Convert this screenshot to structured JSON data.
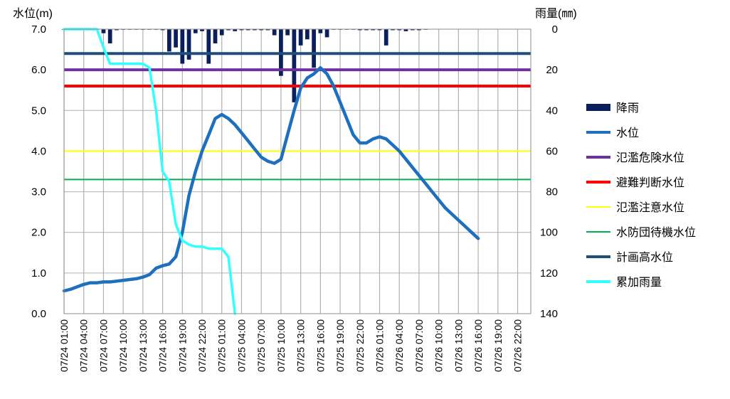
{
  "chart_data": {
    "type": "combo",
    "left_axis_label": "水位(m)",
    "right_axis_label": "雨量(㎜)",
    "y_left": {
      "min": 0,
      "max": 7,
      "ticks": [
        "0.0",
        "1.0",
        "2.0",
        "3.0",
        "4.0",
        "5.0",
        "6.0",
        "7.0"
      ]
    },
    "y_right": {
      "min": 0,
      "max": 140,
      "inverted": true,
      "ticks": [
        "0",
        "20",
        "40",
        "60",
        "80",
        "100",
        "120",
        "140"
      ]
    },
    "x_hours": {
      "start": 0,
      "end": 71,
      "grid_step": 3
    },
    "x_tick_labels": [
      "07/24 01:00",
      "07/24 04:00",
      "07/24 07:00",
      "07/24 10:00",
      "07/24 13:00",
      "07/24 16:00",
      "07/24 19:00",
      "07/24 22:00",
      "07/25 01:00",
      "07/25 04:00",
      "07/25 07:00",
      "07/25 10:00",
      "07/25 13:00",
      "07/25 16:00",
      "07/25 19:00",
      "07/25 22:00",
      "07/26 01:00",
      "07/26 04:00",
      "07/26 07:00",
      "07/26 10:00",
      "07/26 13:00",
      "07/26 16:00",
      "07/26 19:00",
      "07/26 22:00"
    ],
    "grid": true,
    "legend_position": "right",
    "colors": {
      "rain": "#0a1f5c",
      "water_level": "#1f6fbf",
      "flood_danger": "#7030a0",
      "evacuation": "#ff0000",
      "flood_caution": "#ffff00",
      "standby": "#00b050",
      "plan_high": "#1f4e79",
      "cumulative": "#33ffff",
      "grid": "#b0b0b0"
    },
    "thresholds": [
      {
        "key": "plan_high",
        "name": "計画高水位",
        "value": 6.4
      },
      {
        "key": "flood_danger",
        "name": "氾濫危険水位",
        "value": 6.0
      },
      {
        "key": "evacuation",
        "name": "避難判断水位",
        "value": 5.6
      },
      {
        "key": "flood_caution",
        "name": "氾濫注意水位",
        "value": 4.0
      },
      {
        "key": "standby",
        "name": "水防団待機水位",
        "value": 3.3
      }
    ],
    "rain": [
      [
        0,
        0.2
      ],
      [
        1,
        0.2
      ],
      [
        2,
        0.2
      ],
      [
        3,
        0.2
      ],
      [
        4,
        0.2
      ],
      [
        5,
        0.2
      ],
      [
        6,
        2
      ],
      [
        7,
        7
      ],
      [
        8,
        0.5
      ],
      [
        9,
        0.2
      ],
      [
        10,
        0.2
      ],
      [
        11,
        0.2
      ],
      [
        12,
        0.2
      ],
      [
        13,
        0.2
      ],
      [
        14,
        0.2
      ],
      [
        15,
        0.5
      ],
      [
        16,
        11
      ],
      [
        17,
        9
      ],
      [
        18,
        17
      ],
      [
        19,
        15
      ],
      [
        20,
        2
      ],
      [
        21,
        1
      ],
      [
        22,
        17
      ],
      [
        23,
        7
      ],
      [
        24,
        3
      ],
      [
        25,
        0.5
      ],
      [
        26,
        1
      ],
      [
        27,
        0.5
      ],
      [
        28,
        0.5
      ],
      [
        29,
        0.5
      ],
      [
        30,
        0.5
      ],
      [
        31,
        0.5
      ],
      [
        32,
        3
      ],
      [
        33,
        23
      ],
      [
        34,
        3
      ],
      [
        35,
        36
      ],
      [
        36,
        8
      ],
      [
        37,
        5
      ],
      [
        38,
        19
      ],
      [
        39,
        2
      ],
      [
        40,
        4
      ],
      [
        41,
        0.2
      ],
      [
        42,
        0.2
      ],
      [
        43,
        0.2
      ],
      [
        44,
        0.2
      ],
      [
        45,
        0.5
      ],
      [
        46,
        0.5
      ],
      [
        47,
        0.5
      ],
      [
        48,
        0.5
      ],
      [
        49,
        8
      ],
      [
        50,
        0.5
      ],
      [
        51,
        0.5
      ],
      [
        52,
        1
      ],
      [
        53,
        0.5
      ],
      [
        54,
        0.5
      ],
      [
        55,
        0.2
      ]
    ],
    "series": [
      {
        "key": "water_level",
        "name": "水位",
        "axis": "left",
        "points": [
          [
            0,
            0.56
          ],
          [
            1,
            0.6
          ],
          [
            2,
            0.66
          ],
          [
            3,
            0.72
          ],
          [
            4,
            0.76
          ],
          [
            5,
            0.76
          ],
          [
            6,
            0.78
          ],
          [
            7,
            0.78
          ],
          [
            8,
            0.8
          ],
          [
            9,
            0.82
          ],
          [
            10,
            0.84
          ],
          [
            11,
            0.86
          ],
          [
            12,
            0.9
          ],
          [
            13,
            0.96
          ],
          [
            14,
            1.12
          ],
          [
            15,
            1.18
          ],
          [
            16,
            1.22
          ],
          [
            17,
            1.4
          ],
          [
            18,
            2.0
          ],
          [
            19,
            2.9
          ],
          [
            20,
            3.5
          ],
          [
            21,
            4.0
          ],
          [
            22,
            4.4
          ],
          [
            23,
            4.8
          ],
          [
            24,
            4.9
          ],
          [
            25,
            4.8
          ],
          [
            26,
            4.65
          ],
          [
            27,
            4.45
          ],
          [
            28,
            4.25
          ],
          [
            29,
            4.05
          ],
          [
            30,
            3.85
          ],
          [
            31,
            3.75
          ],
          [
            32,
            3.7
          ],
          [
            33,
            3.8
          ],
          [
            34,
            4.4
          ],
          [
            35,
            5.0
          ],
          [
            36,
            5.55
          ],
          [
            37,
            5.8
          ],
          [
            38,
            5.9
          ],
          [
            39,
            6.05
          ],
          [
            40,
            5.9
          ],
          [
            41,
            5.6
          ],
          [
            42,
            5.2
          ],
          [
            43,
            4.8
          ],
          [
            44,
            4.4
          ],
          [
            45,
            4.2
          ],
          [
            46,
            4.2
          ],
          [
            47,
            4.3
          ],
          [
            48,
            4.35
          ],
          [
            49,
            4.3
          ],
          [
            50,
            4.15
          ],
          [
            51,
            4.0
          ],
          [
            52,
            3.8
          ],
          [
            53,
            3.6
          ],
          [
            54,
            3.4
          ],
          [
            55,
            3.2
          ],
          [
            56,
            3.0
          ],
          [
            57,
            2.8
          ],
          [
            58,
            2.6
          ],
          [
            59,
            2.45
          ],
          [
            60,
            2.3
          ],
          [
            61,
            2.15
          ],
          [
            62,
            2.0
          ],
          [
            63,
            1.85
          ]
        ]
      },
      {
        "key": "cumulative",
        "name": "累加雨量",
        "axis": "right",
        "points": [
          [
            0,
            0
          ],
          [
            1,
            0
          ],
          [
            2,
            0
          ],
          [
            3,
            0
          ],
          [
            4,
            0
          ],
          [
            5,
            0
          ],
          [
            6,
            9
          ],
          [
            7,
            17
          ],
          [
            8,
            17
          ],
          [
            9,
            17
          ],
          [
            10,
            17
          ],
          [
            11,
            17
          ],
          [
            12,
            17
          ],
          [
            13,
            19
          ],
          [
            14,
            40
          ],
          [
            15,
            70
          ],
          [
            16,
            75
          ],
          [
            17,
            96
          ],
          [
            18,
            104
          ],
          [
            19,
            106
          ],
          [
            20,
            107
          ],
          [
            21,
            107
          ],
          [
            22,
            108
          ],
          [
            23,
            108
          ],
          [
            24,
            108
          ],
          [
            25,
            112
          ],
          [
            26,
            140
          ]
        ]
      }
    ],
    "legend": [
      {
        "key": "rain",
        "label": "降雨",
        "kind": "bar"
      },
      {
        "key": "water_level",
        "label": "水位",
        "kind": "line"
      },
      {
        "key": "flood_danger",
        "label": "氾濫危険水位",
        "kind": "line"
      },
      {
        "key": "evacuation",
        "label": "避難判断水位",
        "kind": "line"
      },
      {
        "key": "flood_caution",
        "label": "氾濫注意水位",
        "kind": "line"
      },
      {
        "key": "standby",
        "label": "水防団待機水位",
        "kind": "line"
      },
      {
        "key": "plan_high",
        "label": "計画高水位",
        "kind": "line"
      },
      {
        "key": "cumulative",
        "label": "累加雨量",
        "kind": "line"
      }
    ]
  }
}
